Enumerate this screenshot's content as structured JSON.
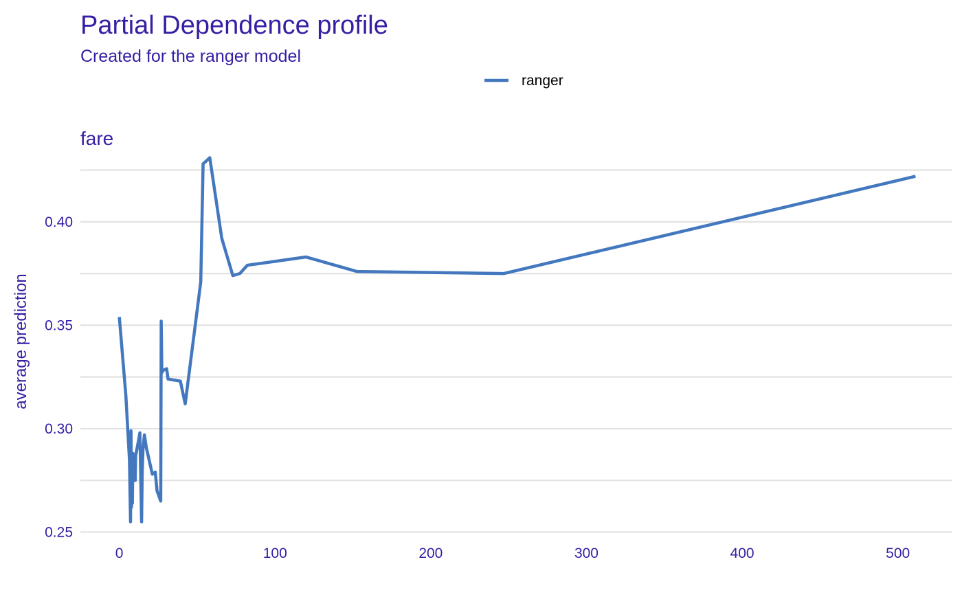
{
  "chart_data": {
    "type": "line",
    "title": "Partial Dependence profile",
    "subtitle": "Created for the ranger model",
    "facet": "fare",
    "xlabel": "",
    "ylabel": "average prediction",
    "xlim": [
      -25,
      535
    ],
    "ylim": [
      0.2465,
      0.4335
    ],
    "x_ticks": [
      0,
      100,
      200,
      300,
      400,
      500
    ],
    "x_tick_labels": [
      "0",
      "100",
      "200",
      "300",
      "400",
      "500"
    ],
    "y_ticks": [
      0.25,
      0.3,
      0.35,
      0.4
    ],
    "y_tick_labels": [
      "0.25",
      "0.30",
      "0.35",
      "0.40"
    ],
    "y_grid_minor": [
      0.275,
      0.325,
      0.375,
      0.425
    ],
    "grid": true,
    "legend_position": "top-center",
    "series": [
      {
        "name": "ranger",
        "color": "#4378bf",
        "x": [
          0,
          4.2,
          6.5,
          7.2,
          7.5,
          7.8,
          8.1,
          8.4,
          8.7,
          9.2,
          10.2,
          10.5,
          12.5,
          13.2,
          14.3,
          14.7,
          15.2,
          16.1,
          17.3,
          21.2,
          23.1,
          24.2,
          26.1,
          26.6,
          26.9,
          27.3,
          27.7,
          30.4,
          31.3,
          39.2,
          42.3,
          52.3,
          53.8,
          58.1,
          65.8,
          72.9,
          77.4,
          82.2,
          119.9,
          152.6,
          246.8,
          511.3
        ],
        "y": [
          0.354,
          0.316,
          0.285,
          0.255,
          0.299,
          0.262,
          0.28,
          0.264,
          0.288,
          0.278,
          0.275,
          0.287,
          0.295,
          0.298,
          0.255,
          0.279,
          0.29,
          0.297,
          0.291,
          0.278,
          0.279,
          0.27,
          0.266,
          0.265,
          0.352,
          0.327,
          0.328,
          0.329,
          0.324,
          0.323,
          0.312,
          0.371,
          0.428,
          0.431,
          0.392,
          0.374,
          0.375,
          0.379,
          0.383,
          0.376,
          0.375,
          0.422
        ]
      }
    ]
  }
}
